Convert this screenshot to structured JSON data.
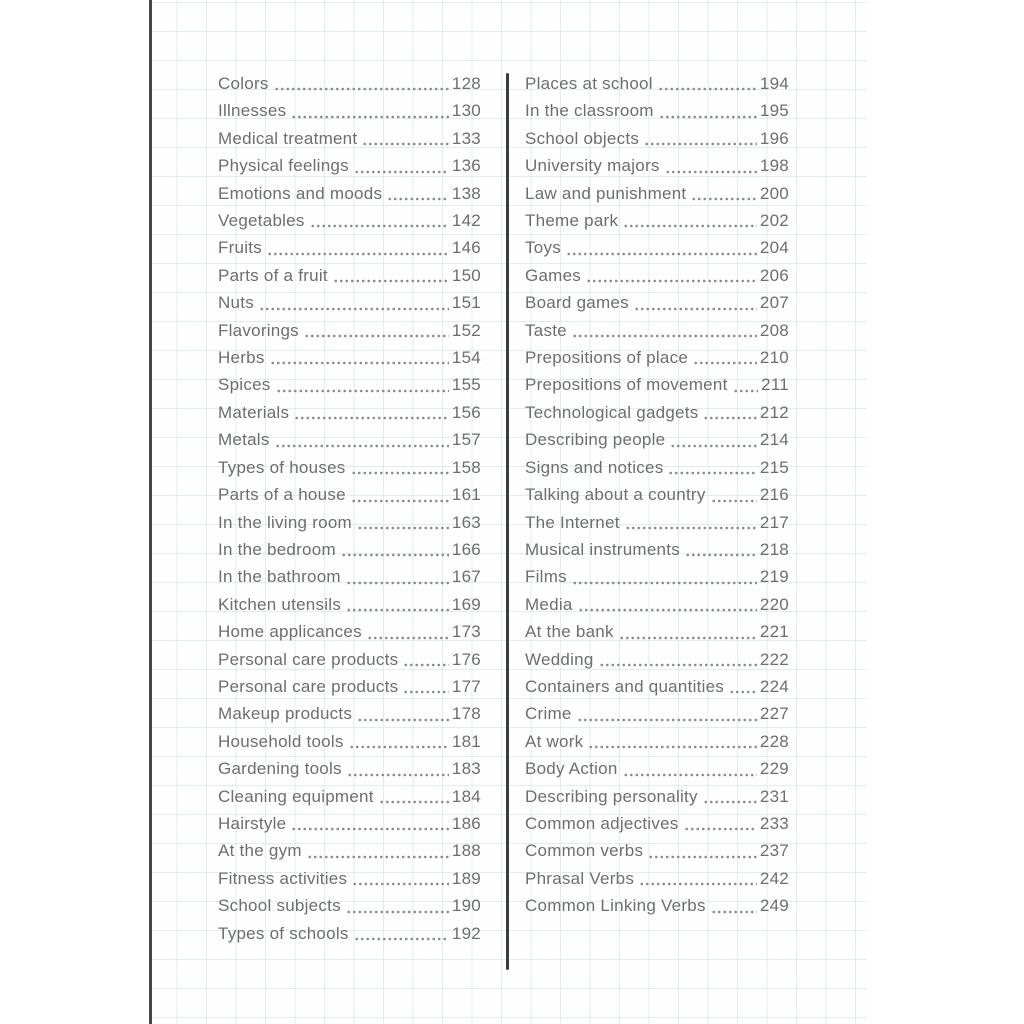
{
  "style": {
    "text_color": "#6e6e6e",
    "dot_color": "#8a8a8a",
    "divider_color": "#3c3c3c",
    "edge_line_color": "#474747",
    "grid_line_color": "rgba(198,224,229,0.55)",
    "paper_color": "#ffffff"
  },
  "toc": {
    "columns": [
      {
        "side": "left",
        "entries": [
          {
            "label": "Colors",
            "page": "128"
          },
          {
            "label": "Illnesses",
            "page": "130"
          },
          {
            "label": "Medical treatment",
            "page": "133"
          },
          {
            "label": "Physical feelings",
            "page": "136"
          },
          {
            "label": "Emotions and moods",
            "page": "138"
          },
          {
            "label": "Vegetables",
            "page": "142"
          },
          {
            "label": "Fruits",
            "page": "146"
          },
          {
            "label": "Parts of a fruit",
            "page": "150"
          },
          {
            "label": "Nuts",
            "page": "151"
          },
          {
            "label": "Flavorings",
            "page": "152"
          },
          {
            "label": "Herbs",
            "page": "154"
          },
          {
            "label": "Spices",
            "page": "155"
          },
          {
            "label": "Materials",
            "page": "156"
          },
          {
            "label": "Metals",
            "page": "157"
          },
          {
            "label": "Types of houses",
            "page": "158"
          },
          {
            "label": "Parts of a house",
            "page": "161"
          },
          {
            "label": "In the living room",
            "page": "163"
          },
          {
            "label": "In the bedroom",
            "page": "166"
          },
          {
            "label": "In the bathroom",
            "page": "167"
          },
          {
            "label": "Kitchen utensils",
            "page": "169"
          },
          {
            "label": "Home applicances",
            "page": "173"
          },
          {
            "label": "Personal care products",
            "page": "176"
          },
          {
            "label": "Personal care products",
            "page": "177"
          },
          {
            "label": "Makeup products",
            "page": "178"
          },
          {
            "label": "Household tools",
            "page": "181"
          },
          {
            "label": "Gardening tools",
            "page": "183"
          },
          {
            "label": "Cleaning equipment",
            "page": "184"
          },
          {
            "label": "Hairstyle",
            "page": "186"
          },
          {
            "label": "At the gym",
            "page": "188"
          },
          {
            "label": "Fitness activities",
            "page": "189"
          },
          {
            "label": "School subjects",
            "page": "190"
          },
          {
            "label": "Types of schools",
            "page": "192"
          }
        ]
      },
      {
        "side": "right",
        "entries": [
          {
            "label": "Places at school",
            "page": "194"
          },
          {
            "label": "In the classroom",
            "page": "195"
          },
          {
            "label": "School objects",
            "page": "196"
          },
          {
            "label": "University majors",
            "page": "198"
          },
          {
            "label": "Law and punishment",
            "page": "200"
          },
          {
            "label": "Theme park",
            "page": "202"
          },
          {
            "label": "Toys",
            "page": "204"
          },
          {
            "label": "Games",
            "page": "206"
          },
          {
            "label": "Board games",
            "page": "207"
          },
          {
            "label": "Taste",
            "page": "208"
          },
          {
            "label": "Prepositions of place",
            "page": "210"
          },
          {
            "label": "Prepositions of movement",
            "page": "211"
          },
          {
            "label": "Technological gadgets",
            "page": "212"
          },
          {
            "label": "Describing people",
            "page": "214"
          },
          {
            "label": "Signs and notices",
            "page": "215"
          },
          {
            "label": "Talking about a country",
            "page": "216"
          },
          {
            "label": "The Internet",
            "page": "217"
          },
          {
            "label": "Musical instruments",
            "page": "218"
          },
          {
            "label": "Films",
            "page": "219"
          },
          {
            "label": "Media",
            "page": "220"
          },
          {
            "label": "At the bank",
            "page": "221"
          },
          {
            "label": "Wedding",
            "page": "222"
          },
          {
            "label": "Containers and quantities",
            "page": "224"
          },
          {
            "label": "Crime",
            "page": "227"
          },
          {
            "label": "At work",
            "page": "228"
          },
          {
            "label": "Body Action",
            "page": "229"
          },
          {
            "label": "Describing personality",
            "page": "231"
          },
          {
            "label": "Common adjectives",
            "page": "233"
          },
          {
            "label": "Common verbs",
            "page": "237"
          },
          {
            "label": "Phrasal Verbs",
            "page": "242"
          },
          {
            "label": "Common Linking Verbs",
            "page": "249"
          }
        ]
      }
    ]
  }
}
